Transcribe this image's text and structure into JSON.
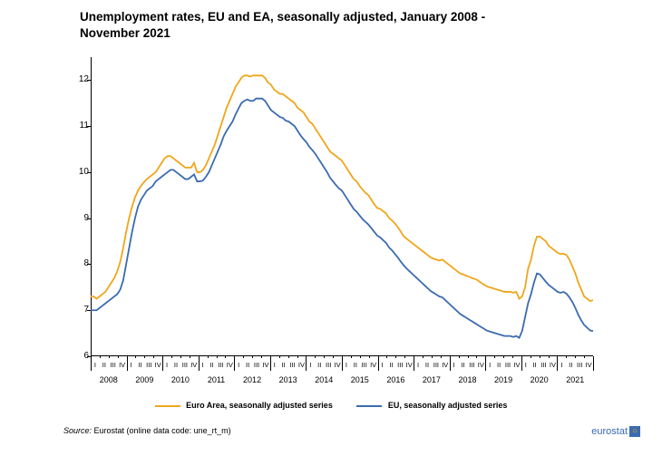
{
  "title": "Unemployment rates, EU and EA, seasonally adjusted, January 2008 - November 2021",
  "chart": {
    "type": "line",
    "background_color": "#ffffff",
    "axis_color": "#000000",
    "title_fontsize": 13.5,
    "axis_label_fontsize": 10,
    "ylim": [
      6,
      12.5
    ],
    "ytick_step": 1,
    "ytick_labels": [
      "6",
      "7",
      "8",
      "9",
      "10",
      "11",
      "12"
    ],
    "years": [
      "2008",
      "2009",
      "2010",
      "2011",
      "2012",
      "2013",
      "2014",
      "2015",
      "2016",
      "2017",
      "2018",
      "2019",
      "2020",
      "2021"
    ],
    "quarters_per_year": [
      "I",
      "II",
      "III",
      "IV"
    ],
    "series": [
      {
        "name": "Euro Area, seasonally adjusted series",
        "color": "#f0a61a",
        "line_width": 1.8,
        "values": [
          7.3,
          7.3,
          7.25,
          7.3,
          7.35,
          7.4,
          7.5,
          7.6,
          7.7,
          7.85,
          8.05,
          8.35,
          8.7,
          9.0,
          9.25,
          9.45,
          9.6,
          9.7,
          9.78,
          9.85,
          9.9,
          9.95,
          10.0,
          10.1,
          10.2,
          10.3,
          10.35,
          10.35,
          10.3,
          10.25,
          10.2,
          10.15,
          10.1,
          10.1,
          10.1,
          10.2,
          10.0,
          10.0,
          10.05,
          10.15,
          10.3,
          10.45,
          10.6,
          10.8,
          11.0,
          11.2,
          11.4,
          11.55,
          11.7,
          11.85,
          11.95,
          12.05,
          12.1,
          12.1,
          12.08,
          12.1,
          12.1,
          12.1,
          12.1,
          12.05,
          11.95,
          11.9,
          11.8,
          11.75,
          11.7,
          11.7,
          11.65,
          11.6,
          11.55,
          11.5,
          11.4,
          11.35,
          11.3,
          11.2,
          11.1,
          11.05,
          10.95,
          10.85,
          10.75,
          10.65,
          10.55,
          10.45,
          10.4,
          10.35,
          10.3,
          10.25,
          10.15,
          10.05,
          9.95,
          9.85,
          9.8,
          9.7,
          9.62,
          9.55,
          9.5,
          9.4,
          9.3,
          9.22,
          9.2,
          9.15,
          9.1,
          9.0,
          8.95,
          8.88,
          8.8,
          8.7,
          8.6,
          8.55,
          8.5,
          8.45,
          8.4,
          8.35,
          8.3,
          8.25,
          8.2,
          8.15,
          8.12,
          8.1,
          8.08,
          8.1,
          8.05,
          8.0,
          7.95,
          7.9,
          7.85,
          7.8,
          7.78,
          7.75,
          7.73,
          7.7,
          7.68,
          7.65,
          7.6,
          7.56,
          7.52,
          7.5,
          7.48,
          7.46,
          7.44,
          7.42,
          7.4,
          7.4,
          7.4,
          7.38,
          7.4,
          7.25,
          7.3,
          7.5,
          7.9,
          8.1,
          8.4,
          8.6,
          8.6,
          8.55,
          8.5,
          8.4,
          8.35,
          8.3,
          8.25,
          8.22,
          8.23,
          8.2,
          8.1,
          7.95,
          7.8,
          7.6,
          7.45,
          7.3,
          7.25,
          7.2,
          7.22
        ]
      },
      {
        "name": "EU, seasonally adjusted series",
        "color": "#3b6bb0",
        "line_width": 1.8,
        "values": [
          7.0,
          7.0,
          7.0,
          7.05,
          7.1,
          7.15,
          7.2,
          7.25,
          7.3,
          7.35,
          7.45,
          7.65,
          8.0,
          8.35,
          8.7,
          9.0,
          9.25,
          9.4,
          9.5,
          9.6,
          9.65,
          9.7,
          9.8,
          9.85,
          9.9,
          9.95,
          10.0,
          10.05,
          10.05,
          10.0,
          9.95,
          9.9,
          9.85,
          9.85,
          9.9,
          9.95,
          9.8,
          9.8,
          9.82,
          9.9,
          10.0,
          10.15,
          10.3,
          10.45,
          10.6,
          10.78,
          10.9,
          11.0,
          11.1,
          11.25,
          11.38,
          11.5,
          11.55,
          11.58,
          11.55,
          11.55,
          11.6,
          11.6,
          11.6,
          11.55,
          11.45,
          11.35,
          11.3,
          11.25,
          11.2,
          11.18,
          11.12,
          11.1,
          11.05,
          11.0,
          10.9,
          10.8,
          10.72,
          10.65,
          10.55,
          10.48,
          10.4,
          10.3,
          10.2,
          10.1,
          10.0,
          9.88,
          9.8,
          9.72,
          9.65,
          9.6,
          9.5,
          9.4,
          9.3,
          9.2,
          9.14,
          9.06,
          8.98,
          8.92,
          8.86,
          8.78,
          8.7,
          8.62,
          8.58,
          8.52,
          8.46,
          8.36,
          8.3,
          8.22,
          8.14,
          8.05,
          7.97,
          7.9,
          7.84,
          7.78,
          7.72,
          7.66,
          7.6,
          7.54,
          7.48,
          7.42,
          7.38,
          7.34,
          7.3,
          7.28,
          7.22,
          7.16,
          7.1,
          7.04,
          6.98,
          6.92,
          6.88,
          6.84,
          6.8,
          6.76,
          6.72,
          6.68,
          6.64,
          6.6,
          6.56,
          6.54,
          6.52,
          6.5,
          6.48,
          6.46,
          6.44,
          6.44,
          6.44,
          6.42,
          6.44,
          6.4,
          6.55,
          6.85,
          7.15,
          7.35,
          7.6,
          7.8,
          7.78,
          7.7,
          7.62,
          7.55,
          7.5,
          7.45,
          7.4,
          7.38,
          7.4,
          7.36,
          7.28,
          7.18,
          7.05,
          6.9,
          6.78,
          6.68,
          6.62,
          6.56,
          6.55
        ]
      }
    ]
  },
  "legend": {
    "items": [
      {
        "label": "Euro Area, seasonally adjusted series",
        "color": "#f0a61a"
      },
      {
        "label": "EU, seasonally adjusted series",
        "color": "#3b6bb0"
      }
    ],
    "fontsize": 9
  },
  "source": {
    "label": "Source:",
    "text": " Eurostat (online data code: une_rt_m)"
  },
  "brand": {
    "name": "eurostat",
    "color": "#3b6bb0",
    "accent": "#f7b500"
  }
}
